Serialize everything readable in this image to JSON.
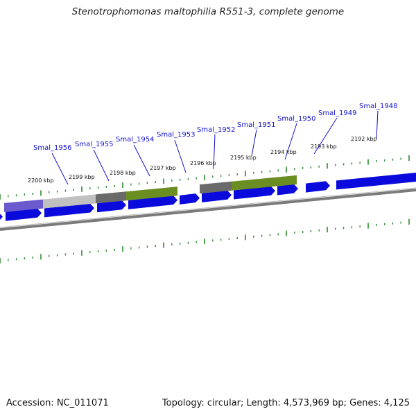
{
  "title": "Stenotrophomonas maltophilia R551-3, complete genome",
  "footer": {
    "accession": "Accession: NC_011071",
    "summary": "Topology: circular; Length: 4,573,969 bp; Genes: 4,125"
  },
  "colors": {
    "gene_forward": "#0a0adc",
    "tick": "#2e8b2e",
    "label": "#1010cc",
    "backbone": "#7a7a7a",
    "feature_olive": "#6b8e23",
    "feature_gray": "#6a6a6a",
    "feature_lightgray": "#c0c0c0",
    "feature_purple": "#6a5acd"
  },
  "kbp_labels": [
    "2192 kbp",
    "2193 kbp",
    "2194 kbp",
    "2195 kbp",
    "2196 kbp",
    "2197 kbp",
    "2198 kbp",
    "2199 kbp",
    "2200 kbp"
  ],
  "genes": [
    {
      "name": "Smal_1948"
    },
    {
      "name": "Smal_1949"
    },
    {
      "name": "Smal_1950"
    },
    {
      "name": "Smal_1951"
    },
    {
      "name": "Smal_1952"
    },
    {
      "name": "Smal_1953"
    },
    {
      "name": "Smal_1954"
    },
    {
      "name": "Smal_1955"
    },
    {
      "name": "Smal_1956"
    }
  ]
}
